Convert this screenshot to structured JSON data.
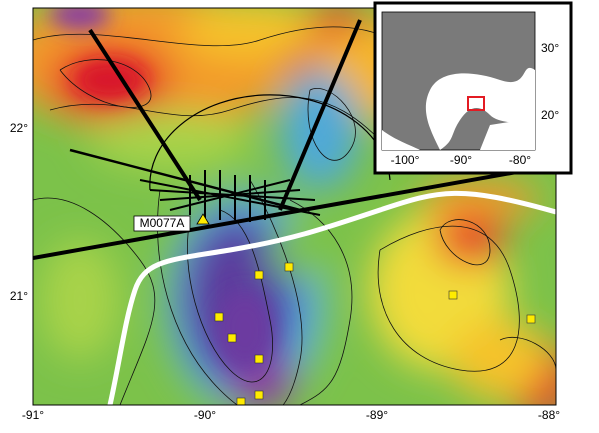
{
  "map": {
    "x_axis_labels": [
      "-91°",
      "-90°",
      "-89°",
      "-88°"
    ],
    "y_axis_labels": [
      "22°",
      "21°"
    ],
    "site_label": "M0077A",
    "inset": {
      "x_axis_labels": [
        "-100°",
        "-90°",
        "-80°"
      ],
      "y_axis_labels": [
        "30°",
        "20°"
      ]
    }
  }
}
